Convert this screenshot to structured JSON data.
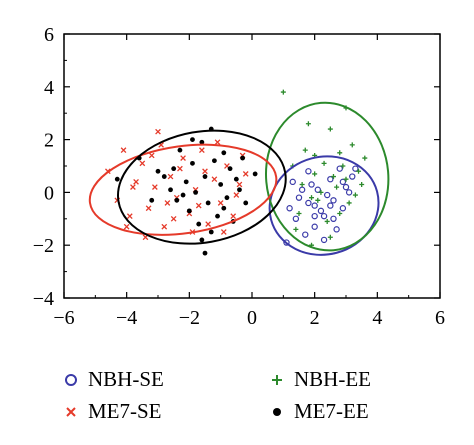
{
  "chart_data": {
    "type": "scatter",
    "xlim": [
      -6,
      6
    ],
    "ylim": [
      -4,
      6
    ],
    "x_ticks": [
      -6,
      -4,
      -2,
      0,
      2,
      4,
      6
    ],
    "y_ticks": [
      -4,
      -2,
      0,
      2,
      4,
      6
    ],
    "grid": false,
    "legend_position": "bottom",
    "series": [
      {
        "name": "NBH-SE",
        "marker": "circle-open",
        "color": "#3a3aa8",
        "points": [
          [
            1.3,
            0.4
          ],
          [
            1.5,
            -0.2
          ],
          [
            1.8,
            0.8
          ],
          [
            2.0,
            -0.5
          ],
          [
            2.1,
            0.1
          ],
          [
            2.3,
            -0.9
          ],
          [
            2.5,
            0.5
          ],
          [
            2.6,
            -0.3
          ],
          [
            2.8,
            0.9
          ],
          [
            2.9,
            -0.6
          ],
          [
            3.0,
            0.2
          ],
          [
            3.2,
            0.6
          ],
          [
            1.4,
            -1.0
          ],
          [
            1.7,
            -1.6
          ],
          [
            2.0,
            -1.3
          ],
          [
            2.3,
            -1.8
          ],
          [
            2.7,
            -1.4
          ],
          [
            1.1,
            -1.9
          ],
          [
            1.9,
            0.3
          ],
          [
            2.4,
            -0.1
          ],
          [
            2.6,
            -1.0
          ],
          [
            3.1,
            0.0
          ],
          [
            1.6,
            0.1
          ],
          [
            2.2,
            -0.7
          ],
          [
            2.9,
            0.4
          ],
          [
            1.2,
            -0.6
          ],
          [
            2.0,
            -0.9
          ],
          [
            2.5,
            -0.5
          ],
          [
            3.3,
            0.9
          ],
          [
            1.8,
            -0.4
          ]
        ],
        "ellipse": {
          "cx": 2.3,
          "cy": -0.5,
          "rx": 1.75,
          "ry": 1.85,
          "rotation_deg": 15,
          "color": "#3a3aa8"
        }
      },
      {
        "name": "NBH-EE",
        "marker": "plus",
        "color": "#2c8a2c",
        "points": [
          [
            1.0,
            3.8
          ],
          [
            3.0,
            3.2
          ],
          [
            2.5,
            2.4
          ],
          [
            2.0,
            1.4
          ],
          [
            1.8,
            2.6
          ],
          [
            3.2,
            1.8
          ],
          [
            1.3,
            1.0
          ],
          [
            2.6,
            0.6
          ],
          [
            3.4,
            0.8
          ],
          [
            2.1,
            -0.3
          ],
          [
            2.8,
            -0.8
          ],
          [
            3.5,
            0.3
          ],
          [
            1.6,
            0.3
          ],
          [
            2.3,
            1.1
          ],
          [
            2.9,
            1.0
          ],
          [
            3.1,
            -0.4
          ],
          [
            1.9,
            -0.2
          ],
          [
            2.4,
            -1.1
          ],
          [
            3.6,
            1.3
          ],
          [
            1.5,
            -0.8
          ],
          [
            2.7,
            0.2
          ],
          [
            3.3,
            -0.1
          ],
          [
            2.0,
            0.7
          ],
          [
            1.7,
            1.6
          ],
          [
            2.2,
            0.0
          ],
          [
            2.8,
            1.5
          ],
          [
            3.0,
            0.5
          ],
          [
            1.4,
            -1.4
          ],
          [
            2.5,
            -1.7
          ],
          [
            1.9,
            -2.0
          ]
        ],
        "ellipse": {
          "cx": 2.4,
          "cy": 0.6,
          "rx": 1.95,
          "ry": 2.8,
          "rotation_deg": 5,
          "color": "#2c8a2c"
        }
      },
      {
        "name": "ME7-SE",
        "marker": "x",
        "color": "#e53a2a",
        "points": [
          [
            -4.6,
            0.8
          ],
          [
            -4.3,
            -0.3
          ],
          [
            -4.1,
            1.6
          ],
          [
            -3.9,
            -0.9
          ],
          [
            -3.7,
            0.4
          ],
          [
            -3.5,
            1.1
          ],
          [
            -3.3,
            -0.6
          ],
          [
            -3.1,
            0.2
          ],
          [
            -2.9,
            1.8
          ],
          [
            -2.8,
            -1.3
          ],
          [
            -2.6,
            0.6
          ],
          [
            -2.4,
            -0.2
          ],
          [
            -2.2,
            1.3
          ],
          [
            -2.0,
            -0.8
          ],
          [
            -1.8,
            0.1
          ],
          [
            -1.6,
            1.6
          ],
          [
            -1.4,
            -1.2
          ],
          [
            -1.2,
            0.5
          ],
          [
            -1.0,
            -0.4
          ],
          [
            -0.8,
            1.0
          ],
          [
            -0.6,
            -0.9
          ],
          [
            -0.4,
            0.3
          ],
          [
            -0.3,
            1.4
          ],
          [
            -3.8,
            0.2
          ],
          [
            -3.2,
            1.4
          ],
          [
            -2.7,
            -0.4
          ],
          [
            -2.3,
            0.9
          ],
          [
            -1.9,
            -1.5
          ],
          [
            -1.5,
            0.8
          ],
          [
            -1.1,
            1.9
          ],
          [
            -0.9,
            -1.5
          ],
          [
            -0.5,
            -0.1
          ],
          [
            -4.0,
            -1.3
          ],
          [
            -3.0,
            2.3
          ],
          [
            -1.7,
            -0.5
          ],
          [
            -3.4,
            -1.7
          ],
          [
            -2.5,
            -1.0
          ],
          [
            -0.2,
            0.7
          ]
        ],
        "ellipse": {
          "cx": -2.2,
          "cy": 0.1,
          "rx": 3.0,
          "ry": 1.65,
          "rotation_deg": 8,
          "color": "#e53a2a"
        }
      },
      {
        "name": "ME7-EE",
        "marker": "dot",
        "color": "#000000",
        "points": [
          [
            -4.3,
            0.5
          ],
          [
            -3.6,
            1.3
          ],
          [
            -3.0,
            0.8
          ],
          [
            -2.6,
            0.1
          ],
          [
            -2.4,
            -0.3
          ],
          [
            -2.3,
            1.6
          ],
          [
            -2.1,
            0.4
          ],
          [
            -2.0,
            -0.7
          ],
          [
            -1.9,
            1.1
          ],
          [
            -1.8,
            0.0
          ],
          [
            -1.7,
            -1.2
          ],
          [
            -1.6,
            1.9
          ],
          [
            -1.5,
            0.6
          ],
          [
            -1.4,
            -0.4
          ],
          [
            -1.3,
            2.4
          ],
          [
            -1.2,
            1.2
          ],
          [
            -1.1,
            -0.9
          ],
          [
            -1.0,
            0.3
          ],
          [
            -0.9,
            1.5
          ],
          [
            -0.8,
            -0.2
          ],
          [
            -0.7,
            0.9
          ],
          [
            -0.6,
            -1.1
          ],
          [
            -0.5,
            0.5
          ],
          [
            -0.3,
            1.3
          ],
          [
            -0.2,
            -0.4
          ],
          [
            0.1,
            0.7
          ],
          [
            -2.8,
            0.6
          ],
          [
            -2.2,
            -0.1
          ],
          [
            -1.6,
            -1.8
          ],
          [
            -1.3,
            -1.5
          ],
          [
            -1.9,
            2.0
          ],
          [
            -2.5,
            0.9
          ],
          [
            -0.9,
            -0.6
          ],
          [
            -1.5,
            -2.3
          ],
          [
            -3.2,
            -0.3
          ],
          [
            -0.4,
            0.1
          ]
        ],
        "ellipse": {
          "cx": -1.6,
          "cy": 0.2,
          "rx": 2.7,
          "ry": 2.1,
          "rotation_deg": 10,
          "color": "#000000"
        }
      }
    ]
  },
  "legend": {
    "items": [
      {
        "label": "NBH-SE",
        "series": 0
      },
      {
        "label": "NBH-EE",
        "series": 1
      },
      {
        "label": "ME7-SE",
        "series": 2
      },
      {
        "label": "ME7-EE",
        "series": 3
      }
    ]
  }
}
